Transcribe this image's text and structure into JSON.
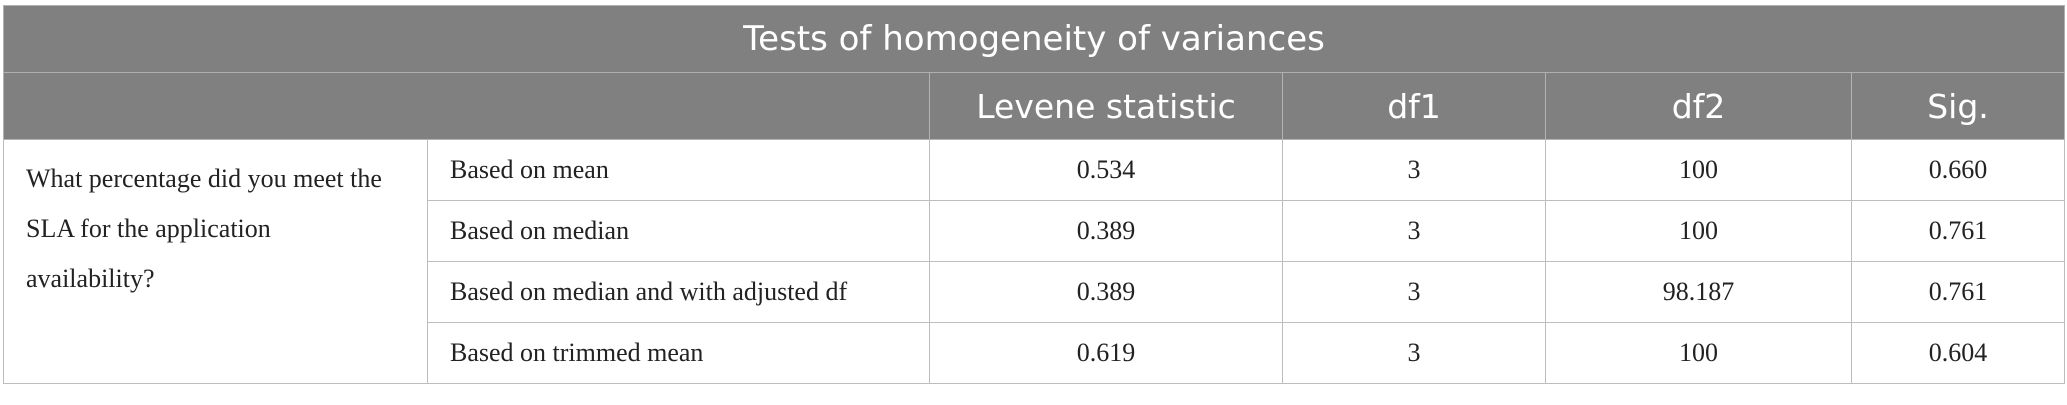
{
  "title": "Tests of homogeneity of variances",
  "columns": [
    "",
    "",
    "Levene statistic",
    "df1",
    "df2",
    "Sig."
  ],
  "item": "What percentage did you meet the SLA for the application availability?",
  "rows": [
    {
      "label": "Based on mean",
      "levene": "0.534",
      "df1": "3",
      "df2": "100",
      "sig": "0.660"
    },
    {
      "label": "Based on median",
      "levene": "0.389",
      "df1": "3",
      "df2": "100",
      "sig": "0.761"
    },
    {
      "label": "Based on median and with adjusted df",
      "levene": "0.389",
      "df1": "3",
      "df2": "98.187",
      "sig": "0.761"
    },
    {
      "label": "Based on trimmed mean",
      "levene": "0.619",
      "df1": "3",
      "df2": "100",
      "sig": "0.604"
    }
  ]
}
